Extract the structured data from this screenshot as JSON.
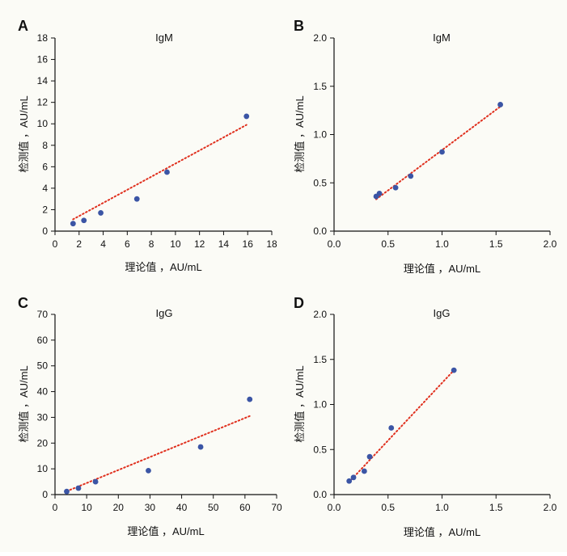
{
  "chart_data": [
    {
      "type": "scatter",
      "panel": "A",
      "title": "IgM",
      "xlabel": "理论值 ，AU/mL",
      "ylabel": "检测值 ，AU/mL",
      "xlim": [
        0,
        18
      ],
      "ylim": [
        0,
        18
      ],
      "xticks": [
        0,
        2,
        4,
        6,
        8,
        10,
        12,
        14,
        16,
        18
      ],
      "yticks": [
        0,
        2,
        4,
        6,
        8,
        10,
        12,
        14,
        16,
        18
      ],
      "xtick_labels": [
        "0",
        "2",
        "4",
        "6",
        "8",
        "10",
        "12",
        "14",
        "16",
        "18"
      ],
      "ytick_labels": [
        "0",
        "2",
        "4",
        "6",
        "8",
        "10",
        "12",
        "14",
        "16",
        "18"
      ],
      "grid": false,
      "points": [
        {
          "x": 1.5,
          "y": 0.7
        },
        {
          "x": 2.4,
          "y": 1.0
        },
        {
          "x": 3.8,
          "y": 1.7
        },
        {
          "x": 6.8,
          "y": 3.0
        },
        {
          "x": 9.3,
          "y": 5.5
        },
        {
          "x": 15.9,
          "y": 10.7
        }
      ],
      "fit_line": {
        "x": [
          1.5,
          15.9
        ],
        "y": [
          1.1,
          9.9
        ]
      },
      "colors": {
        "points": "#3b55a5",
        "fit": "#e0301e"
      }
    },
    {
      "type": "scatter",
      "panel": "B",
      "title": "IgM",
      "xlabel": "理论值 ，AU/mL",
      "ylabel": "检测值 ，AU/mL",
      "xlim": [
        0,
        2.0
      ],
      "ylim": [
        0,
        2.0
      ],
      "xticks": [
        0,
        0.5,
        1.0,
        1.5,
        2.0
      ],
      "yticks": [
        0,
        0.5,
        1.0,
        1.5,
        2.0
      ],
      "xtick_labels": [
        "0.0",
        "0.5",
        "1.0",
        "1.5",
        "2.0"
      ],
      "ytick_labels": [
        "0.0",
        "0.5",
        "1.0",
        "1.5",
        "2.0"
      ],
      "grid": false,
      "points": [
        {
          "x": 0.39,
          "y": 0.36
        },
        {
          "x": 0.42,
          "y": 0.39
        },
        {
          "x": 0.57,
          "y": 0.45
        },
        {
          "x": 0.71,
          "y": 0.57
        },
        {
          "x": 1.0,
          "y": 0.82
        },
        {
          "x": 1.54,
          "y": 1.31
        }
      ],
      "fit_line": {
        "x": [
          0.39,
          1.54
        ],
        "y": [
          0.33,
          1.29
        ]
      },
      "colors": {
        "points": "#3b55a5",
        "fit": "#e0301e"
      }
    },
    {
      "type": "scatter",
      "panel": "C",
      "title": "IgG",
      "xlabel": "理论值 ，AU/mL",
      "ylabel": "检测值 ，AU/mL",
      "xlim": [
        0,
        70
      ],
      "ylim": [
        0,
        70
      ],
      "xticks": [
        0,
        10,
        20,
        30,
        40,
        50,
        60,
        70
      ],
      "yticks": [
        0,
        10,
        20,
        30,
        40,
        50,
        60,
        70
      ],
      "xtick_labels": [
        "0",
        "10",
        "20",
        "30",
        "40",
        "50",
        "60",
        "70"
      ],
      "ytick_labels": [
        "0",
        "10",
        "20",
        "30",
        "40",
        "50",
        "60",
        "70"
      ],
      "grid": false,
      "points": [
        {
          "x": 3.7,
          "y": 1.2
        },
        {
          "x": 7.4,
          "y": 2.5
        },
        {
          "x": 12.8,
          "y": 5.0
        },
        {
          "x": 29.5,
          "y": 9.3
        },
        {
          "x": 46.0,
          "y": 18.5
        },
        {
          "x": 61.5,
          "y": 37.0
        }
      ],
      "fit_line": {
        "x": [
          3.7,
          61.5
        ],
        "y": [
          1.3,
          30.5
        ]
      },
      "colors": {
        "points": "#3b55a5",
        "fit": "#e0301e"
      }
    },
    {
      "type": "scatter",
      "panel": "D",
      "title": "IgG",
      "xlabel": "理论值 ，AU/mL",
      "ylabel": "检测值 ，AU/mL",
      "xlim": [
        0,
        2.0
      ],
      "ylim": [
        0,
        2.0
      ],
      "xticks": [
        0,
        0.5,
        1.0,
        1.5,
        2.0
      ],
      "yticks": [
        0,
        0.5,
        1.0,
        1.5,
        2.0
      ],
      "xtick_labels": [
        "0.0",
        "0.5",
        "1.0",
        "1.5",
        "2.0"
      ],
      "ytick_labels": [
        "0.0",
        "0.5",
        "1.0",
        "1.5",
        "2.0"
      ],
      "grid": false,
      "points": [
        {
          "x": 0.14,
          "y": 0.15
        },
        {
          "x": 0.18,
          "y": 0.19
        },
        {
          "x": 0.28,
          "y": 0.26
        },
        {
          "x": 0.33,
          "y": 0.42
        },
        {
          "x": 0.53,
          "y": 0.74
        },
        {
          "x": 1.11,
          "y": 1.38
        }
      ],
      "fit_line": {
        "x": [
          0.14,
          1.11
        ],
        "y": [
          0.14,
          1.38
        ]
      },
      "colors": {
        "points": "#3b55a5",
        "fit": "#e0301e"
      }
    }
  ]
}
